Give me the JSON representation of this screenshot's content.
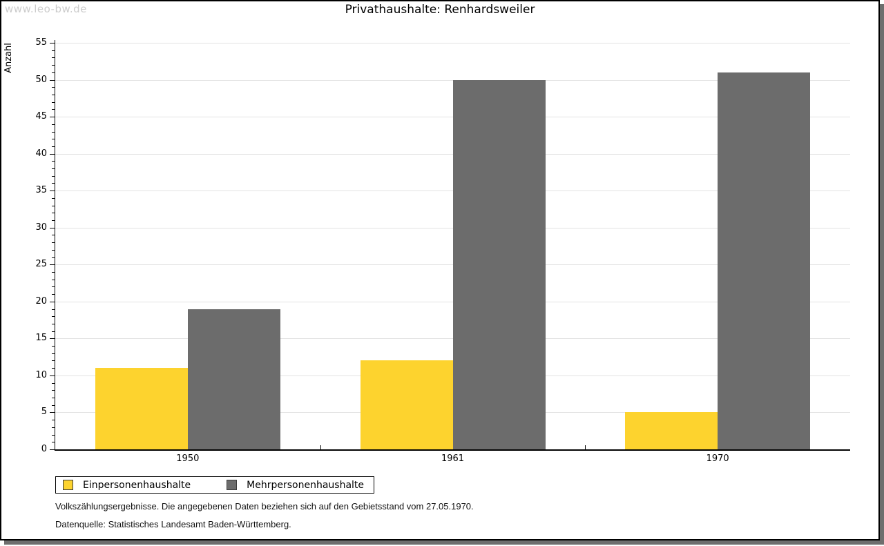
{
  "watermark": "www.leo-bw.de",
  "header": {
    "title": "Privathaushalte: Renhardsweiler"
  },
  "chart_data": {
    "type": "bar",
    "title": "Privathaushalte: Renhardsweiler",
    "xlabel": "",
    "ylabel": "Anzahl",
    "categories": [
      "1950",
      "1961",
      "1970"
    ],
    "series": [
      {
        "name": "Einpersonenhaushalte",
        "color": "#fdd32e",
        "values": [
          11,
          12,
          5
        ]
      },
      {
        "name": "Mehrpersonenhaushalte",
        "color": "#6c6c6c",
        "values": [
          19,
          50,
          51
        ]
      }
    ],
    "ylim": [
      0,
      55
    ],
    "ytick_step": 5,
    "minor_tick_step": 1,
    "grid": "horizontal-major",
    "gridline_color": "#e2e2e2",
    "legend_position": "bottom-left"
  },
  "footer": {
    "line1": "Volkszählungsergebnisse. Die angegebenen Daten beziehen sich auf den Gebietsstand vom 27.05.1970.",
    "line2": "Datenquelle: Statistisches Landesamt Baden-Württemberg."
  },
  "colors": {
    "series1": "#fdd32e",
    "series2": "#6c6c6c",
    "shadow": "#6e6e6e",
    "watermark": "#cccccc",
    "gridline": "#e2e2e2"
  }
}
